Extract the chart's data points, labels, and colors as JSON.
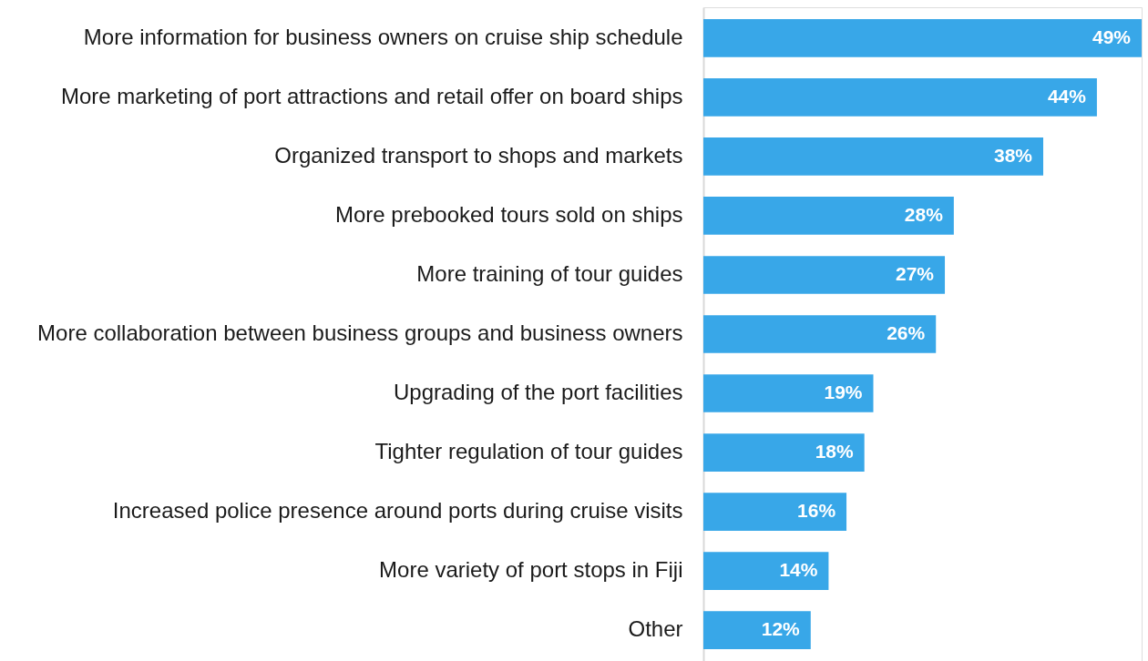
{
  "chart_data": {
    "type": "bar",
    "orientation": "horizontal",
    "color": "#38a7e8",
    "categories": [
      "More information for business owners on cruise ship schedule",
      "More marketing of port attractions and retail offer on board ships",
      "Organized transport to shops and markets",
      "More prebooked tours sold on ships",
      "More training of tour guides",
      "More collaboration between business groups and business owners",
      "Upgrading of the port facilities",
      "Tighter regulation of tour guides",
      "Increased police presence around ports during cruise visits",
      "More variety of port stops in Fiji",
      "Other"
    ],
    "values": [
      49,
      44,
      38,
      28,
      27,
      26,
      19,
      18,
      16,
      14,
      12
    ],
    "value_labels": [
      "49%",
      "44%",
      "38%",
      "28%",
      "27%",
      "26%",
      "19%",
      "18%",
      "16%",
      "14%",
      "12%"
    ]
  }
}
